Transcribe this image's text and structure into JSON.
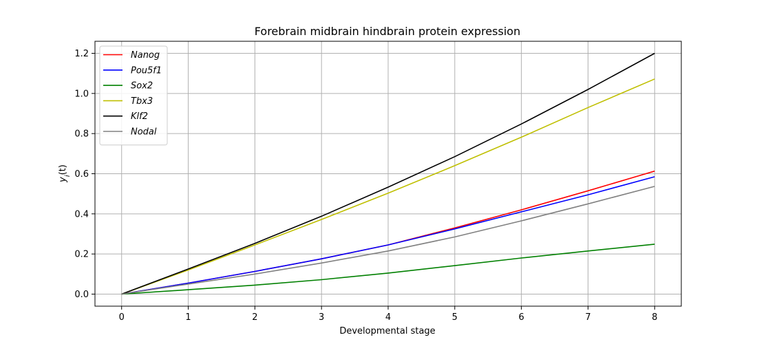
{
  "chart_data": {
    "type": "line",
    "title": "Forebrain midbrain hindbrain protein expression",
    "xlabel": "Developmental stage",
    "ylabel": "y_i(t)",
    "xlim": [
      -0.4,
      8.4
    ],
    "ylim": [
      -0.06,
      1.26
    ],
    "xticks": [
      0,
      1,
      2,
      3,
      4,
      5,
      6,
      7,
      8
    ],
    "xtick_labels": [
      "0",
      "1",
      "2",
      "3",
      "4",
      "5",
      "6",
      "7",
      "8"
    ],
    "yticks": [
      0.0,
      0.2,
      0.4,
      0.6,
      0.8,
      1.0,
      1.2
    ],
    "ytick_labels": [
      "0.0",
      "0.2",
      "0.4",
      "0.6",
      "0.8",
      "1.0",
      "1.2"
    ],
    "grid": true,
    "legend_position": "top-left",
    "x": [
      0,
      1,
      2,
      3,
      4,
      5,
      6,
      7,
      8
    ],
    "series": [
      {
        "name": "Nanog",
        "color": "#ff0000",
        "values": [
          0.0,
          0.055,
          0.113,
          0.176,
          0.245,
          0.33,
          0.42,
          0.515,
          0.613
        ]
      },
      {
        "name": "Pou5f1",
        "color": "#0000ff",
        "values": [
          0.0,
          0.055,
          0.113,
          0.176,
          0.245,
          0.325,
          0.41,
          0.495,
          0.585
        ]
      },
      {
        "name": "Sox2",
        "color": "#008000",
        "values": [
          0.0,
          0.022,
          0.045,
          0.072,
          0.105,
          0.142,
          0.18,
          0.215,
          0.249
        ]
      },
      {
        "name": "Tbx3",
        "color": "#bfbf00",
        "values": [
          0.0,
          0.12,
          0.245,
          0.372,
          0.503,
          0.64,
          0.782,
          0.93,
          1.072
        ]
      },
      {
        "name": "Klf2",
        "color": "#000000",
        "values": [
          0.0,
          0.125,
          0.253,
          0.388,
          0.533,
          0.685,
          0.848,
          1.02,
          1.2
        ]
      },
      {
        "name": "Nodal",
        "color": "#808080",
        "values": [
          0.0,
          0.05,
          0.1,
          0.155,
          0.215,
          0.285,
          0.365,
          0.45,
          0.537
        ]
      }
    ]
  }
}
